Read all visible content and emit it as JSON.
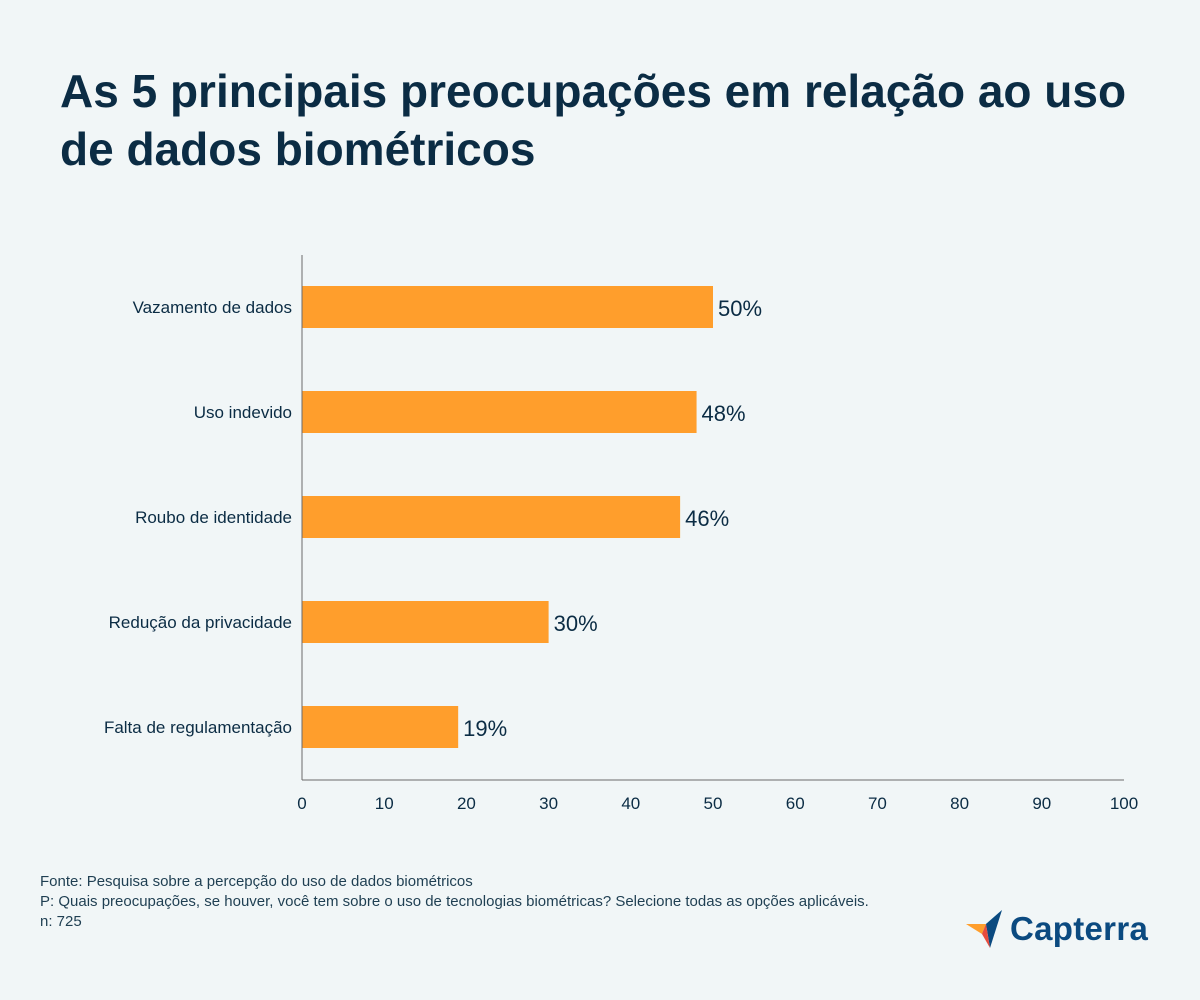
{
  "chart_data": {
    "type": "bar",
    "orientation": "horizontal",
    "title": "As 5 principais preocupações em relação ao uso de dados biométricos",
    "categories": [
      "Vazamento de dados",
      "Uso indevido",
      "Roubo de identidade",
      "Redução da privacidade",
      "Falta de regulamentação"
    ],
    "values": [
      50,
      48,
      46,
      30,
      19
    ],
    "value_labels": [
      "50%",
      "48%",
      "46%",
      "30%",
      "19%"
    ],
    "xlim": [
      0,
      100
    ],
    "xticks": [
      "0",
      "10",
      "20",
      "30",
      "40",
      "50",
      "60",
      "70",
      "80",
      "90",
      "100"
    ],
    "grid": false,
    "colors": {
      "bar": "#ff9e2c",
      "text": "#0b2c44",
      "axis": "#6b6b6b"
    }
  },
  "footer": {
    "source": "Fonte: Pesquisa sobre a percepção do uso de dados biométricos",
    "question": "P: Quais preocupações, se houver, você tem sobre o uso de tecnologias biométricas? Selecione todas as opções aplicáveis.",
    "sample": "n: 725"
  },
  "brand": {
    "name": "Capterra",
    "icon": "capterra-logo-icon",
    "colors": [
      "#ff9e2c",
      "#5cc1e6",
      "#0b4a80",
      "#e84c3d"
    ]
  }
}
